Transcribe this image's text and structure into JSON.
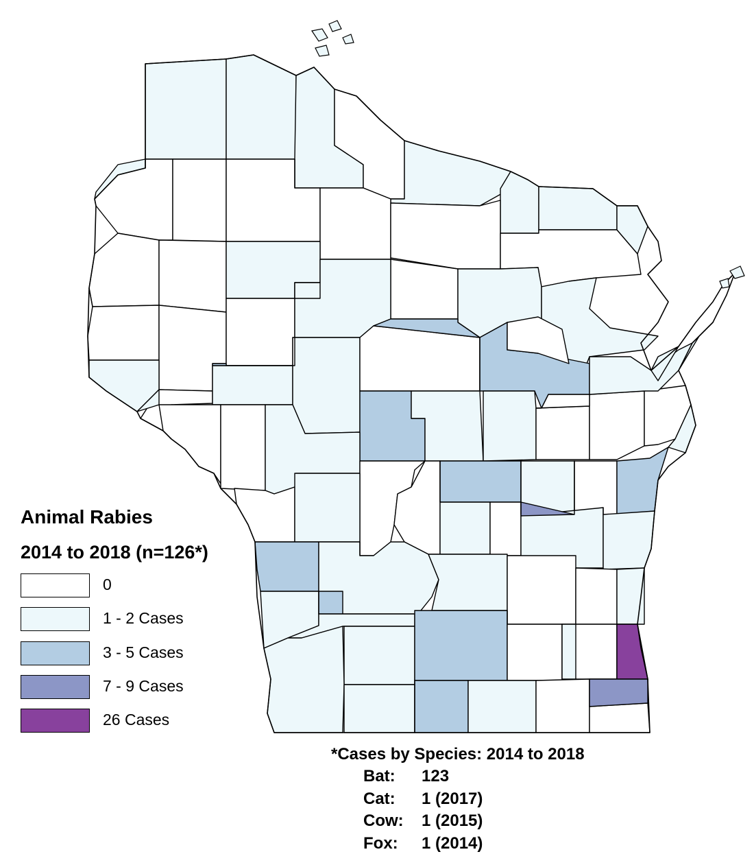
{
  "legend": {
    "title": "Animal Rabies",
    "subtitle": "2014 to 2018 (n=126*)",
    "items": [
      {
        "label": "0",
        "color": "#ffffff"
      },
      {
        "label": "1 - 2 Cases",
        "color": "#edf8fb"
      },
      {
        "label": "3 - 5 Cases",
        "color": "#b3cde3"
      },
      {
        "label": "7 - 9 Cases",
        "color": "#8c96c6"
      },
      {
        "label": "26 Cases",
        "color": "#88419d"
      }
    ]
  },
  "species_note": {
    "title": "*Cases by Species: 2014 to 2018",
    "rows": [
      {
        "species": "Bat:",
        "count": "123"
      },
      {
        "species": "Cat:",
        "count": "1 (2017)"
      },
      {
        "species": "Cow:",
        "count": "1 (2015)"
      },
      {
        "species": "Fox:",
        "count": "1 (2014)"
      }
    ]
  },
  "map": {
    "region": "Wisconsin",
    "county_case_classes": [
      1,
      1,
      1,
      0,
      0,
      1,
      1,
      0,
      0,
      0,
      0,
      1,
      0,
      0,
      0,
      1,
      0,
      1,
      1,
      0,
      0,
      0,
      1,
      1,
      0,
      1,
      1,
      0,
      2,
      2,
      1,
      1,
      0,
      0,
      0,
      0,
      1,
      0,
      0,
      1,
      0,
      0,
      2,
      1,
      0,
      2,
      1,
      0,
      1,
      1,
      0,
      1,
      2,
      1,
      1,
      0,
      0,
      1,
      1,
      2,
      1,
      1,
      2,
      0,
      0,
      0,
      1,
      1,
      2,
      1,
      0,
      1,
      0,
      0,
      1,
      1,
      1,
      0,
      0,
      1,
      1,
      1,
      3,
      1,
      1,
      1,
      0,
      0,
      4,
      1,
      3,
      3,
      1,
      0,
      2,
      2,
      1,
      2
    ]
  }
}
